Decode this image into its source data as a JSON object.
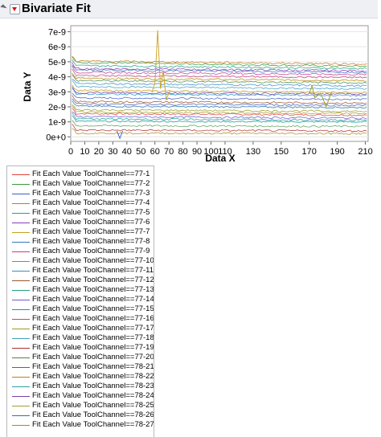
{
  "report": {
    "title": "Bivariate Fit",
    "collapse_icon": "disclosure-triangle-icon",
    "menu_icon": "red-triangle-menu-icon"
  },
  "chart_data": {
    "type": "line",
    "title": "",
    "xlabel": "Data X",
    "ylabel": "Data Y",
    "xlim": [
      0,
      212
    ],
    "ylim": [
      -3e-10,
      7.4e-09
    ],
    "x_ticks": [
      0,
      10,
      20,
      30,
      40,
      50,
      60,
      70,
      80,
      90,
      100,
      110,
      130,
      150,
      170,
      190,
      210
    ],
    "x_tick_labels": [
      "0",
      "10",
      "20",
      "30",
      "40",
      "50",
      "60",
      "70",
      "80",
      "90",
      "100",
      "110",
      "130",
      "150",
      "170",
      "190",
      "210"
    ],
    "y_ticks": [
      0,
      1e-09,
      2e-09,
      3e-09,
      4e-09,
      5e-09,
      6e-09,
      7e-09
    ],
    "y_tick_labels": [
      "0e+0",
      "1e-9",
      "2e-9",
      "3e-9",
      "4e-9",
      "5e-9",
      "6e-9",
      "7e-9"
    ],
    "grid": true,
    "legend_position": "bottom-left",
    "series": [
      {
        "name": "Fit Each Value ToolChannel==77-1",
        "color": "#e0413a",
        "start": 1.55e-09,
        "end": 1.45e-09
      },
      {
        "name": "Fit Each Value ToolChannel==77-2",
        "color": "#3a9a3a",
        "start": 4.95e-09,
        "end": 4.7e-09
      },
      {
        "name": "Fit Each Value ToolChannel==77-3",
        "color": "#3a5fc8",
        "start": 2.6e-09,
        "end": 2.5e-09
      },
      {
        "name": "Fit Each Value ToolChannel==77-4",
        "color": "#b8860b",
        "start": 3.9e-09,
        "end": 3.75e-09
      },
      {
        "name": "Fit Each Value ToolChannel==77-5",
        "color": "#1ea0a0",
        "start": 1.05e-09,
        "end": 1e-09
      },
      {
        "name": "Fit Each Value ToolChannel==77-6",
        "color": "#8a3ab8",
        "start": 4.55e-09,
        "end": 4.4e-09
      },
      {
        "name": "Fit Each Value ToolChannel==77-7",
        "color": "#c8a020",
        "start": 3.1e-09,
        "end": 2.95e-09
      },
      {
        "name": "Fit Each Value ToolChannel==77-8",
        "color": "#2a7abf",
        "start": 2.05e-09,
        "end": 1.95e-09
      },
      {
        "name": "Fit Each Value ToolChannel==77-9",
        "color": "#c83a8a",
        "start": 4.3e-09,
        "end": 4.15e-09
      },
      {
        "name": "Fit Each Value ToolChannel==77-10",
        "color": "#5aa05a",
        "start": 7.5e-10,
        "end": 7e-10
      },
      {
        "name": "Fit Each Value ToolChannel==77-11",
        "color": "#3a8ac8",
        "start": 3.55e-09,
        "end": 3.4e-09
      },
      {
        "name": "Fit Each Value ToolChannel==77-12",
        "color": "#a0522d",
        "start": 2.35e-09,
        "end": 2.25e-09
      },
      {
        "name": "Fit Each Value ToolChannel==77-13",
        "color": "#20a080",
        "start": 4.75e-09,
        "end": 4.55e-09
      },
      {
        "name": "Fit Each Value ToolChannel==77-14",
        "color": "#6a5acd",
        "start": 1.35e-09,
        "end": 1.25e-09
      },
      {
        "name": "Fit Each Value ToolChannel==77-15",
        "color": "#1e90c8",
        "start": 2.85e-09,
        "end": 2.75e-09
      },
      {
        "name": "Fit Each Value ToolChannel==77-16",
        "color": "#c8408a",
        "start": 4.1e-09,
        "end": 3.95e-09
      },
      {
        "name": "Fit Each Value ToolChannel==77-17",
        "color": "#9a9a20",
        "start": 1.8e-09,
        "end": 1.7e-09
      },
      {
        "name": "Fit Each Value ToolChannel==77-18",
        "color": "#40a0c0",
        "start": 3.35e-09,
        "end": 3.2e-09
      },
      {
        "name": "Fit Each Value ToolChannel==77-19",
        "color": "#b03030",
        "start": 4.5e-10,
        "end": 4e-10
      },
      {
        "name": "Fit Each Value ToolChannel==77-20",
        "color": "#4a8a3a",
        "start": 3.75e-09,
        "end": 3.6e-09
      },
      {
        "name": "Fit Each Value ToolChannel==78-21",
        "color": "#4a60b0",
        "start": 2.2e-09,
        "end": 2.1e-09
      },
      {
        "name": "Fit Each Value ToolChannel==78-22",
        "color": "#c8781e",
        "start": 5.05e-09,
        "end": 4.85e-09
      },
      {
        "name": "Fit Each Value ToolChannel==78-23",
        "color": "#2aa0a0",
        "start": 1.2e-09,
        "end": 1.1e-09
      },
      {
        "name": "Fit Each Value ToolChannel==78-24",
        "color": "#7a40b0",
        "start": 2.95e-09,
        "end": 2.85e-09
      },
      {
        "name": "Fit Each Value ToolChannel==78-25",
        "color": "#a0a030",
        "start": 1.65e-09,
        "end": 1.55e-09
      },
      {
        "name": "Fit Each Value ToolChannel==78-26",
        "color": "#3070c0",
        "start": 4.45e-09,
        "end": 4.3e-09
      },
      {
        "name": "Fit Each Value ToolChannel==78-27",
        "color": "#b08a1e",
        "start": 2.5e-10,
        "end": 2.2e-10
      }
    ],
    "annotations": {
      "spike_near_x": 63,
      "spike_peak": 7.1e-09
    }
  }
}
